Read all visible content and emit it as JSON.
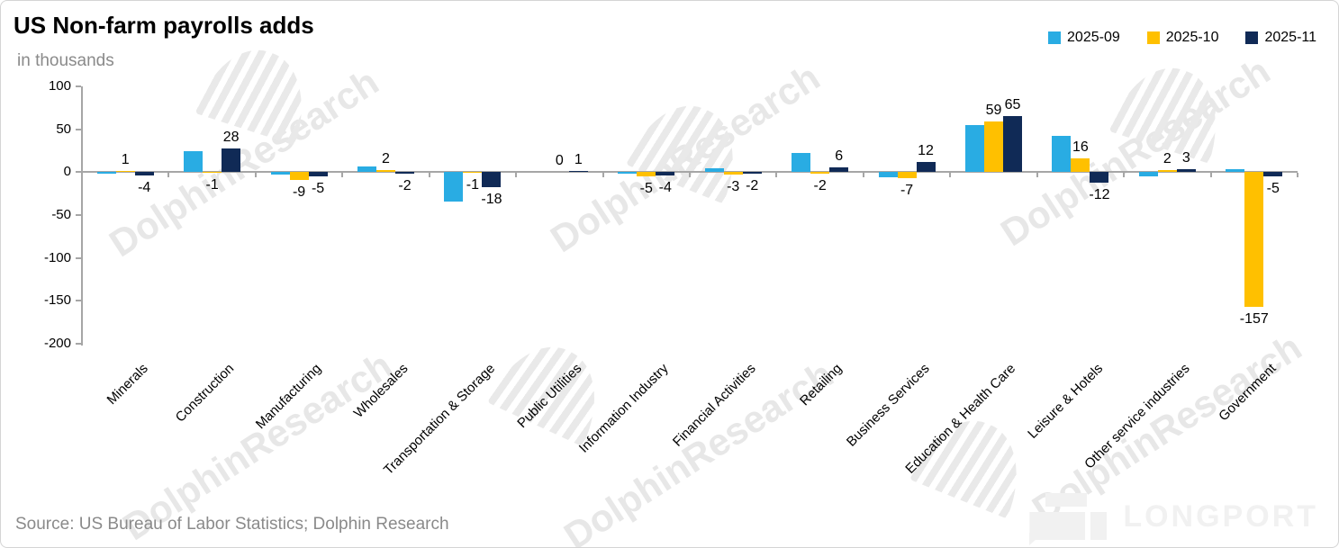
{
  "header": {
    "title": "US Non-farm payrolls adds",
    "subtitle": "in thousands"
  },
  "legend": [
    {
      "label": "2025-09",
      "color": "#29ace3"
    },
    {
      "label": "2025-10",
      "color": "#ffc000"
    },
    {
      "label": "2025-11",
      "color": "#102a56"
    }
  ],
  "chart_data": {
    "type": "bar",
    "title": "US Non-farm payrolls adds",
    "unit_label": "in thousands",
    "categories": [
      "Minerals",
      "Construction",
      "Manufacturing",
      "Wholesales",
      "Transportation & Storage",
      "Public Utilities",
      "Information Industry",
      "Financial Activities",
      "Retailing",
      "Business Services",
      "Education & Health Care",
      "Leisure & Hotels",
      "Other service industries",
      "Government"
    ],
    "series": [
      {
        "name": "2025-09",
        "color": "#29ace3",
        "show_labels": false,
        "values": [
          -2,
          25,
          -3,
          7,
          -34,
          0,
          -2,
          5,
          22,
          -6,
          55,
          42,
          -5,
          4
        ]
      },
      {
        "name": "2025-10",
        "color": "#ffc000",
        "show_labels": true,
        "values": [
          1,
          -1,
          -9,
          2,
          -1,
          0,
          -5,
          -3,
          -2,
          -7,
          59,
          16,
          2,
          -157
        ]
      },
      {
        "name": "2025-11",
        "color": "#102a56",
        "show_labels": true,
        "values": [
          -4,
          28,
          -5,
          -2,
          -18,
          1,
          -4,
          -2,
          6,
          12,
          65,
          -12,
          3,
          -5
        ]
      }
    ],
    "ylim": [
      -200,
      100
    ],
    "y_ticks": [
      100,
      50,
      0,
      -50,
      -100,
      -150,
      -200
    ],
    "grid": false,
    "legend_position": "top-right"
  },
  "watermark": {
    "text": "DolphinResearch",
    "brand": "LONGPORT"
  },
  "footer": {
    "source": "Source: US Bureau of Labor Statistics; Dolphin Research"
  }
}
